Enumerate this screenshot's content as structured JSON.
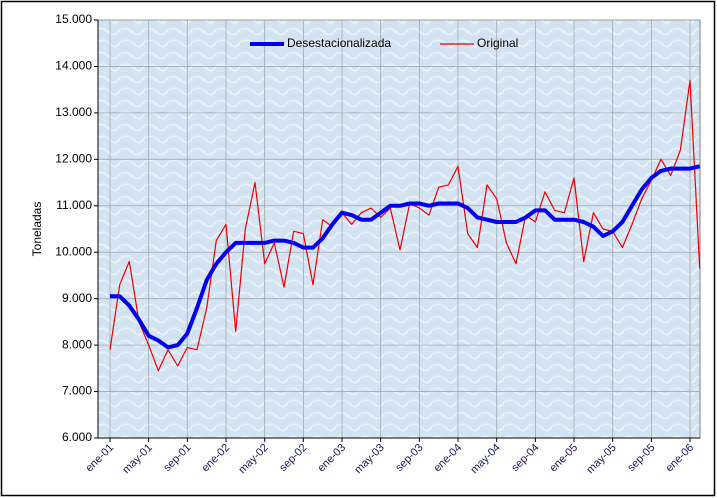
{
  "chart_data": {
    "type": "line",
    "y_label": "Toneladas",
    "categories": [
      "ene-01",
      null,
      null,
      null,
      "may-01",
      null,
      null,
      null,
      "sep-01",
      null,
      null,
      null,
      "ene-02",
      null,
      null,
      null,
      "may-02",
      null,
      null,
      null,
      "sep-02",
      null,
      null,
      null,
      "ene-03",
      null,
      null,
      null,
      "may-03",
      null,
      null,
      null,
      "sep-03",
      null,
      null,
      null,
      "ene-04",
      null,
      null,
      null,
      "may-04",
      null,
      null,
      null,
      "sep-04",
      null,
      null,
      null,
      "ene-05",
      null,
      null,
      null,
      "may-05",
      null,
      null,
      null,
      "sep-05",
      null,
      null,
      null,
      "ene-06",
      null
    ],
    "series": [
      {
        "name": "Desestacionalizada",
        "color": "#0000ee",
        "width": 4,
        "values": [
          9050,
          9050,
          8850,
          8550,
          8200,
          8100,
          7950,
          8000,
          8250,
          8800,
          9400,
          9750,
          10000,
          10200,
          10200,
          10200,
          10200,
          10250,
          10250,
          10200,
          10100,
          10100,
          10300,
          10600,
          10850,
          10800,
          10700,
          10700,
          10850,
          11000,
          11000,
          11050,
          11050,
          11000,
          11050,
          11050,
          11050,
          10950,
          10750,
          10700,
          10650,
          10650,
          10650,
          10750,
          10900,
          10900,
          10700,
          10700,
          10700,
          10650,
          10550,
          10350,
          10450,
          10650,
          11000,
          11350,
          11600,
          11750,
          11800,
          11800,
          11800,
          11850
        ]
      },
      {
        "name": "Original",
        "color": "#ee0000",
        "width": 1.2,
        "values": [
          7900,
          9300,
          9800,
          8500,
          8000,
          7450,
          7900,
          7550,
          7950,
          7900,
          8800,
          10250,
          10600,
          8300,
          10500,
          11500,
          9750,
          10200,
          9250,
          10450,
          10400,
          9300,
          10700,
          10550,
          10850,
          10600,
          10850,
          10950,
          10750,
          10950,
          10050,
          11050,
          10950,
          10800,
          11400,
          11450,
          11850,
          10400,
          10100,
          11450,
          11150,
          10200,
          9750,
          10800,
          10650,
          11300,
          10900,
          10850,
          11600,
          9800,
          10850,
          10500,
          10450,
          10100,
          10600,
          11150,
          11550,
          12000,
          11650,
          12200,
          13700,
          9650
        ]
      }
    ],
    "ylim": [
      6000,
      15000
    ],
    "yticks": [
      {
        "value": 6000,
        "label": "6.000"
      },
      {
        "value": 7000,
        "label": "7.000"
      },
      {
        "value": 8000,
        "label": "8.000"
      },
      {
        "value": 9000,
        "label": "9.000"
      },
      {
        "value": 10000,
        "label": "10.000"
      },
      {
        "value": 11000,
        "label": "11.000"
      },
      {
        "value": 12000,
        "label": "12.000"
      },
      {
        "value": 13000,
        "label": "13.000"
      },
      {
        "value": 14000,
        "label": "14.000"
      },
      {
        "value": 15000,
        "label": "15.000"
      }
    ],
    "grid": true,
    "legend": "top"
  }
}
